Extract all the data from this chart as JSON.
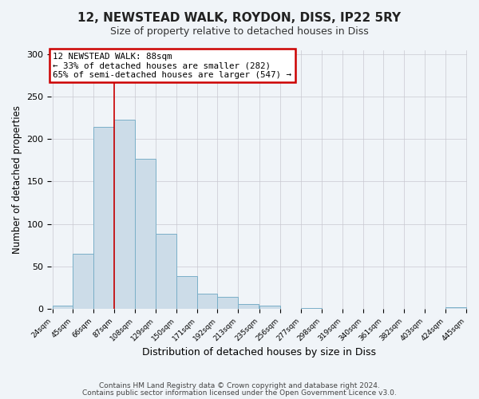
{
  "title": "12, NEWSTEAD WALK, ROYDON, DISS, IP22 5RY",
  "subtitle": "Size of property relative to detached houses in Diss",
  "xlabel": "Distribution of detached houses by size in Diss",
  "ylabel": "Number of detached properties",
  "footnote1": "Contains HM Land Registry data © Crown copyright and database right 2024.",
  "footnote2": "Contains public sector information licensed under the Open Government Licence v3.0.",
  "bin_edges": [
    24,
    45,
    66,
    87,
    108,
    129,
    150,
    171,
    192,
    213,
    235,
    256,
    277,
    298,
    319,
    340,
    361,
    382,
    403,
    424,
    445
  ],
  "bin_counts": [
    4,
    65,
    214,
    223,
    177,
    88,
    39,
    18,
    14,
    6,
    4,
    0,
    1,
    0,
    0,
    0,
    0,
    0,
    0,
    2
  ],
  "bar_facecolor": "#ccdce8",
  "bar_edgecolor": "#7aafc8",
  "vline_x": 87,
  "vline_color": "#cc0000",
  "annotation_title": "12 NEWSTEAD WALK: 88sqm",
  "annotation_line1": "← 33% of detached houses are smaller (282)",
  "annotation_line2": "65% of semi-detached houses are larger (547) →",
  "annotation_box_color": "#cc0000",
  "ylim": [
    0,
    305
  ],
  "yticks": [
    0,
    50,
    100,
    150,
    200,
    250,
    300
  ],
  "tick_labels": [
    "24sqm",
    "45sqm",
    "66sqm",
    "87sqm",
    "108sqm",
    "129sqm",
    "150sqm",
    "171sqm",
    "192sqm",
    "213sqm",
    "235sqm",
    "256sqm",
    "277sqm",
    "298sqm",
    "319sqm",
    "340sqm",
    "361sqm",
    "382sqm",
    "403sqm",
    "424sqm",
    "445sqm"
  ],
  "background_color": "#f0f4f8",
  "grid_color": "#c8c8d0"
}
